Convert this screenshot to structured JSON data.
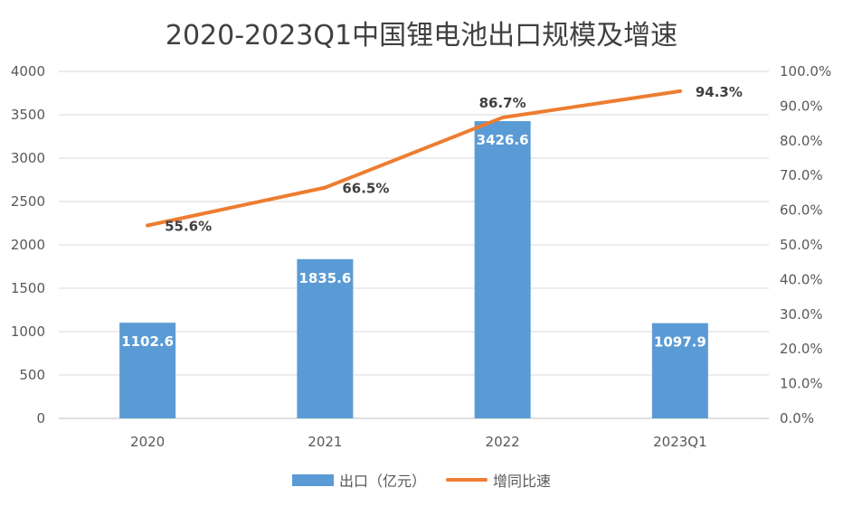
{
  "chart_data": {
    "type": "bar",
    "title": "2020-2023Q1中国锂电池出口规模及增速",
    "categories": [
      "2020",
      "2021",
      "2022",
      "2023Q1"
    ],
    "series": [
      {
        "name": "出口（亿元）",
        "type": "bar",
        "axis": "left",
        "values": [
          1102.6,
          1835.6,
          3426.6,
          1097.9
        ]
      },
      {
        "name": "增同比速",
        "type": "line",
        "axis": "right",
        "values": [
          55.6,
          66.5,
          86.7,
          94.3
        ]
      }
    ],
    "y_left": {
      "min": 0,
      "max": 4000,
      "ticks": [
        "0",
        "500",
        "1000",
        "1500",
        "2000",
        "2500",
        "3000",
        "3500",
        "4000"
      ]
    },
    "y_right": {
      "min": 0,
      "max": 100,
      "ticks": [
        "0.0%",
        "10.0%",
        "20.0%",
        "30.0%",
        "40.0%",
        "50.0%",
        "60.0%",
        "70.0%",
        "80.0%",
        "90.0%",
        "100.0%"
      ]
    },
    "bar_labels": [
      "1102.6",
      "1835.6",
      "3426.6",
      "1097.9"
    ],
    "line_labels": [
      "55.6%",
      "66.5%",
      "86.7%",
      "94.3%"
    ],
    "grid": true,
    "legend_position": "bottom",
    "colors": {
      "bar": "#5B9BD5",
      "line": "#ED7D31",
      "grid": "#D9D9D9",
      "title": "#404040"
    }
  }
}
